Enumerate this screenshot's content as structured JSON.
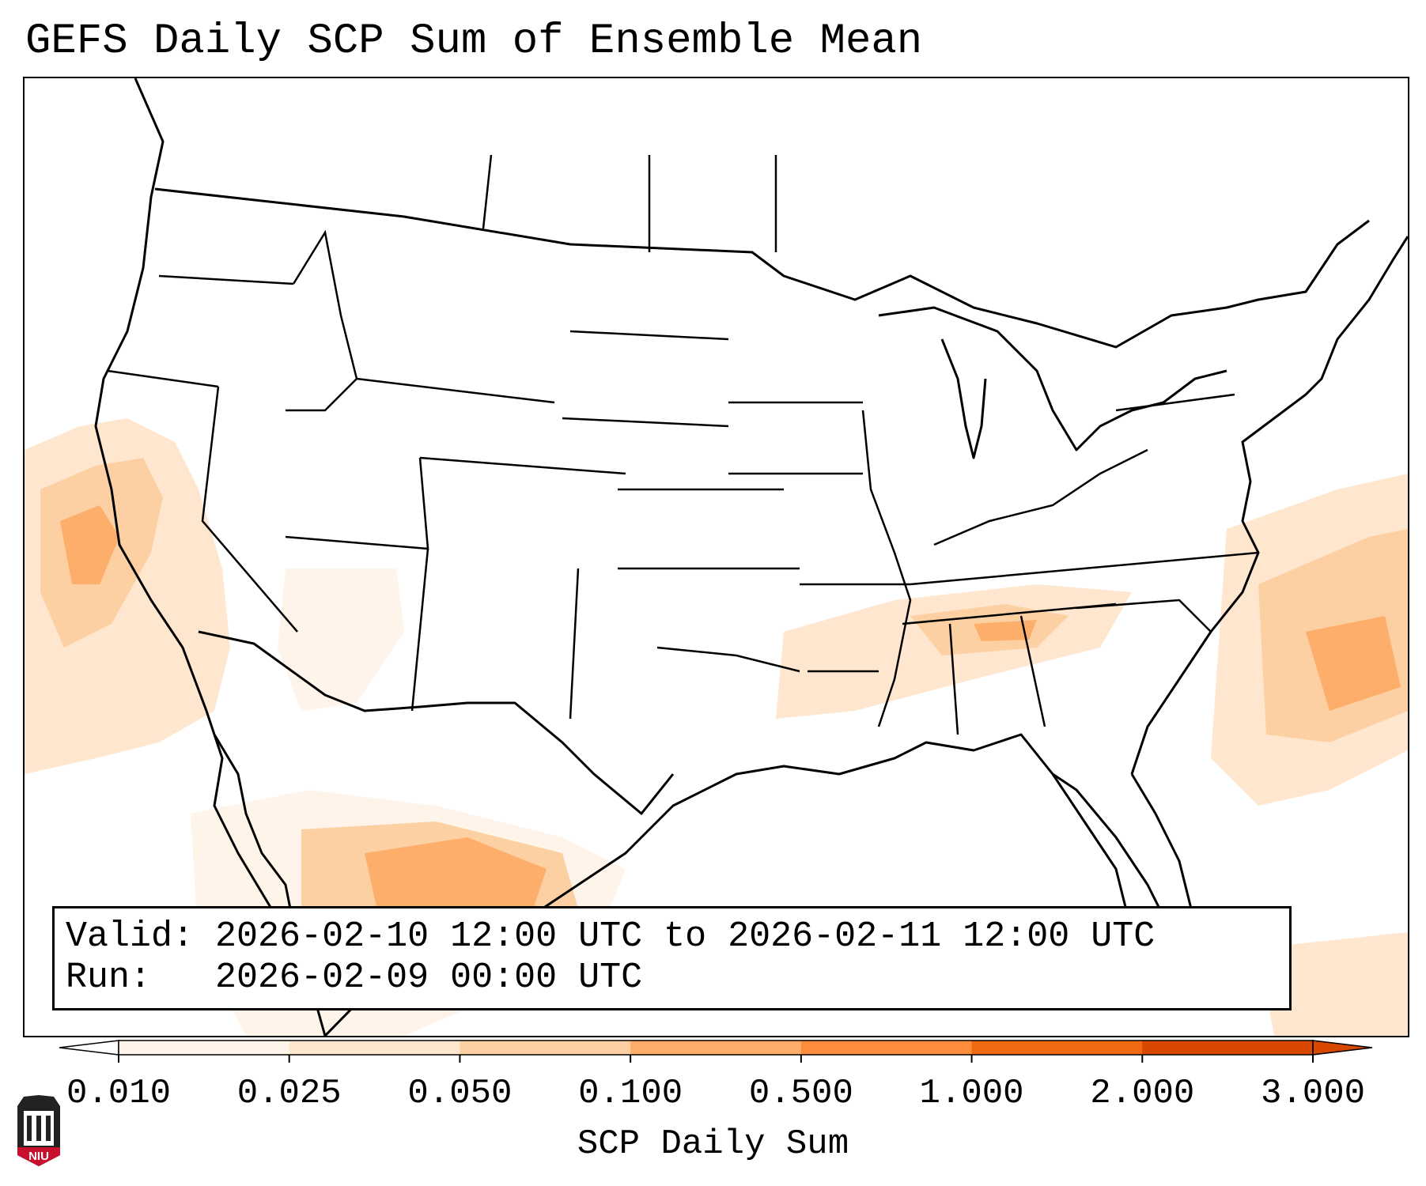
{
  "title": "GEFS Daily SCP Sum of Ensemble Mean",
  "info": {
    "valid_label": "Valid:",
    "valid_value": "2026-02-10 12:00 UTC to 2026-02-11 12:00 UTC",
    "run_label": "Run:",
    "run_value": "2026-02-09 00:00 UTC"
  },
  "colorbar": {
    "label": "SCP Daily Sum",
    "ticks": [
      "0.010",
      "0.025",
      "0.050",
      "0.100",
      "0.500",
      "1.000",
      "2.000",
      "3.000"
    ],
    "colors": [
      "#fff4ea",
      "#fee6cf",
      "#fdd0a3",
      "#fdae6b",
      "#fd8d3c",
      "#f16913",
      "#d94801"
    ],
    "extend": "both"
  },
  "logo": {
    "text": "NIU",
    "color": "#c8102e"
  }
}
